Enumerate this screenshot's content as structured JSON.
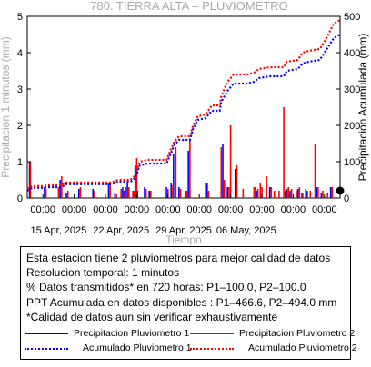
{
  "chart_data": {
    "type": "line",
    "title": "780. TIERRA ALTA – PLUVIOMETRO",
    "xlabel": "Tiempo",
    "ylabel_left": "Precipitacion 1 minutos (mm)",
    "ylabel_right": "Precipitacion Acumulada (mm)",
    "ylim_left": [
      0,
      5
    ],
    "ylim_right": [
      0,
      500
    ],
    "xlim_days": [
      9,
      19
    ],
    "x_tick_top_labels": [
      "00:00",
      "00:00",
      "00:00",
      "00:00",
      "00:00",
      "00:00",
      "00:00",
      "00:00",
      "00:00",
      "00:00"
    ],
    "x_date_labels": [
      "15 Apr, 2025",
      "22 Apr, 2025",
      "29 Apr, 2025",
      "06 May, 2025"
    ],
    "y_left_ticks": [
      0,
      1,
      2,
      3,
      4,
      5
    ],
    "y_right_ticks": [
      0,
      100,
      200,
      300,
      400,
      500
    ],
    "colors": {
      "p1": "#0000ff",
      "p2": "#ff0000",
      "acc1": "#0000ff",
      "acc2": "#ff0000"
    },
    "series": [
      {
        "name": "Precipitacion Pluviometro 1",
        "style": "bars",
        "points": [
          [
            0.15,
            1
          ],
          [
            1.1,
            0.3
          ],
          [
            2.1,
            0.5
          ],
          [
            2.5,
            0.15
          ],
          [
            3.3,
            0.25
          ],
          [
            4.2,
            0.25
          ],
          [
            5.2,
            0.4
          ],
          [
            5.6,
            0.15
          ],
          [
            6.1,
            0.3
          ],
          [
            6.2,
            0.2
          ],
          [
            6.4,
            0.4
          ],
          [
            6.8,
            0.2
          ],
          [
            6.9,
            0.9
          ],
          [
            7.05,
            0.2
          ],
          [
            7.5,
            0.3
          ],
          [
            7.8,
            0.2
          ],
          [
            8.9,
            0.3
          ],
          [
            9.2,
            0.4
          ],
          [
            9.35,
            1.2
          ],
          [
            9.7,
            0.3
          ],
          [
            10.1,
            0.2
          ],
          [
            10.3,
            1.3
          ],
          [
            11.5,
            0.4
          ],
          [
            12.5,
            1.5
          ],
          [
            12.8,
            0.3
          ],
          [
            13.3,
            0.8
          ],
          [
            14.6,
            0.3
          ],
          [
            14.7,
            0.2
          ],
          [
            15.5,
            0.3
          ],
          [
            16.5,
            0.2
          ],
          [
            16.6,
            0.25
          ],
          [
            16.8,
            0.2
          ],
          [
            17.3,
            0.25
          ],
          [
            17.6,
            0.15
          ],
          [
            17.9,
            0.2
          ],
          [
            18.5,
            0.3
          ],
          [
            18.8,
            0.15
          ],
          [
            19.4,
            0.3
          ]
        ]
      },
      {
        "name": "Precipitacion Pluviometro 2",
        "style": "bars",
        "points": [
          [
            0.2,
            1
          ],
          [
            1.2,
            0.25
          ],
          [
            2.0,
            0.3
          ],
          [
            2.2,
            0.6
          ],
          [
            2.6,
            0.2
          ],
          [
            3.4,
            0.3
          ],
          [
            4.3,
            0.2
          ],
          [
            5.3,
            0.4
          ],
          [
            5.7,
            0.1
          ],
          [
            6.0,
            0.25
          ],
          [
            6.15,
            0.15
          ],
          [
            6.3,
            0.3
          ],
          [
            6.45,
            0.2
          ],
          [
            6.5,
            0.3
          ],
          [
            6.75,
            0.2
          ],
          [
            6.85,
            0.2
          ],
          [
            7.0,
            1.1
          ],
          [
            7.6,
            0.25
          ],
          [
            7.9,
            0.2
          ],
          [
            9.0,
            0.25
          ],
          [
            9.3,
            0.35
          ],
          [
            9.5,
            1.4
          ],
          [
            9.8,
            0.25
          ],
          [
            10.2,
            0.2
          ],
          [
            10.4,
            1.6
          ],
          [
            11.4,
            0.4
          ],
          [
            11.6,
            0.2
          ],
          [
            12.4,
            1.4
          ],
          [
            12.6,
            0.5
          ],
          [
            12.9,
            0.3
          ],
          [
            13.0,
            2.0
          ],
          [
            13.4,
            0.9
          ],
          [
            13.8,
            0.25
          ],
          [
            14.5,
            0.3
          ],
          [
            14.75,
            0.25
          ],
          [
            14.9,
            0.4
          ],
          [
            15.0,
            0.3
          ],
          [
            15.3,
            0.6
          ],
          [
            15.6,
            0.3
          ],
          [
            15.8,
            0.2
          ],
          [
            16.1,
            0.2
          ],
          [
            16.4,
            2.5
          ],
          [
            16.55,
            0.25
          ],
          [
            16.7,
            0.3
          ],
          [
            16.9,
            0.25
          ],
          [
            17.2,
            0.2
          ],
          [
            17.4,
            0.3
          ],
          [
            17.55,
            0.15
          ],
          [
            17.8,
            0.25
          ],
          [
            18.1,
            0.2
          ],
          [
            18.4,
            1.5
          ],
          [
            18.6,
            0.3
          ],
          [
            18.9,
            0.2
          ],
          [
            19.2,
            0.15
          ],
          [
            19.5,
            0.3
          ]
        ]
      },
      {
        "name": "Acumulado Pluviometro 1",
        "style": "dotted",
        "points": [
          [
            0,
            20
          ],
          [
            0.3,
            28
          ],
          [
            1,
            28
          ],
          [
            1.3,
            30
          ],
          [
            2.2,
            30
          ],
          [
            2.5,
            38
          ],
          [
            5.4,
            38
          ],
          [
            5.8,
            45
          ],
          [
            6.6,
            45
          ],
          [
            6.9,
            55
          ],
          [
            7.2,
            90
          ],
          [
            7.7,
            95
          ],
          [
            8.9,
            95
          ],
          [
            9.1,
            115
          ],
          [
            9.4,
            145
          ],
          [
            9.7,
            160
          ],
          [
            10.4,
            160
          ],
          [
            10.6,
            190
          ],
          [
            10.9,
            215
          ],
          [
            11.4,
            220
          ],
          [
            11.8,
            240
          ],
          [
            12.3,
            240
          ],
          [
            12.4,
            265
          ],
          [
            12.8,
            295
          ],
          [
            13.2,
            315
          ],
          [
            14.1,
            315
          ],
          [
            14.5,
            320
          ],
          [
            14.8,
            330
          ],
          [
            15.5,
            335
          ],
          [
            16.4,
            335
          ],
          [
            16.6,
            350
          ],
          [
            17.3,
            355
          ],
          [
            17.6,
            370
          ],
          [
            18.0,
            375
          ],
          [
            18.7,
            380
          ],
          [
            19.0,
            400
          ],
          [
            19.3,
            420
          ],
          [
            19.6,
            440
          ],
          [
            20,
            450
          ]
        ]
      },
      {
        "name": "Acumulado Pluviometro 2",
        "style": "dotted",
        "points": [
          [
            0,
            25
          ],
          [
            0.3,
            33
          ],
          [
            1,
            33
          ],
          [
            1.3,
            35
          ],
          [
            2.2,
            35
          ],
          [
            2.5,
            43
          ],
          [
            5.4,
            43
          ],
          [
            5.8,
            50
          ],
          [
            6.6,
            50
          ],
          [
            6.9,
            62
          ],
          [
            7.2,
            100
          ],
          [
            7.7,
            105
          ],
          [
            8.9,
            105
          ],
          [
            9.1,
            125
          ],
          [
            9.4,
            155
          ],
          [
            9.7,
            170
          ],
          [
            10.4,
            170
          ],
          [
            10.6,
            200
          ],
          [
            10.9,
            225
          ],
          [
            11.4,
            230
          ],
          [
            11.8,
            255
          ],
          [
            12.3,
            255
          ],
          [
            12.4,
            280
          ],
          [
            12.8,
            320
          ],
          [
            13.2,
            340
          ],
          [
            14.1,
            340
          ],
          [
            14.5,
            345
          ],
          [
            14.8,
            355
          ],
          [
            15.5,
            360
          ],
          [
            16.4,
            360
          ],
          [
            16.6,
            375
          ],
          [
            17.3,
            380
          ],
          [
            17.6,
            400
          ],
          [
            18.0,
            405
          ],
          [
            18.7,
            410
          ],
          [
            19.0,
            430
          ],
          [
            19.3,
            455
          ],
          [
            19.6,
            480
          ],
          [
            20,
            490
          ]
        ]
      }
    ]
  },
  "info": {
    "line1": "Esta estacion tiene 2 pluviometros para mejor calidad de datos",
    "line2": "Resolucion temporal: 1 minutos",
    "line3": "% Datos transmitidos* en 720 horas: P1–100.0, P2–100.0",
    "line4": "PPT Acumulada en datos disponibles : P1–466.6, P2–494.0 mm",
    "line5": "*Calidad de datos aun sin verificar exhaustivamente"
  },
  "legend": {
    "p1": "Precipitacion Pluviometro 1",
    "p2": "Precipitacion Pluviometro 2",
    "acc1": "Acumulado Pluviometro 1",
    "acc2": "Acumulado Pluviometro 2"
  }
}
